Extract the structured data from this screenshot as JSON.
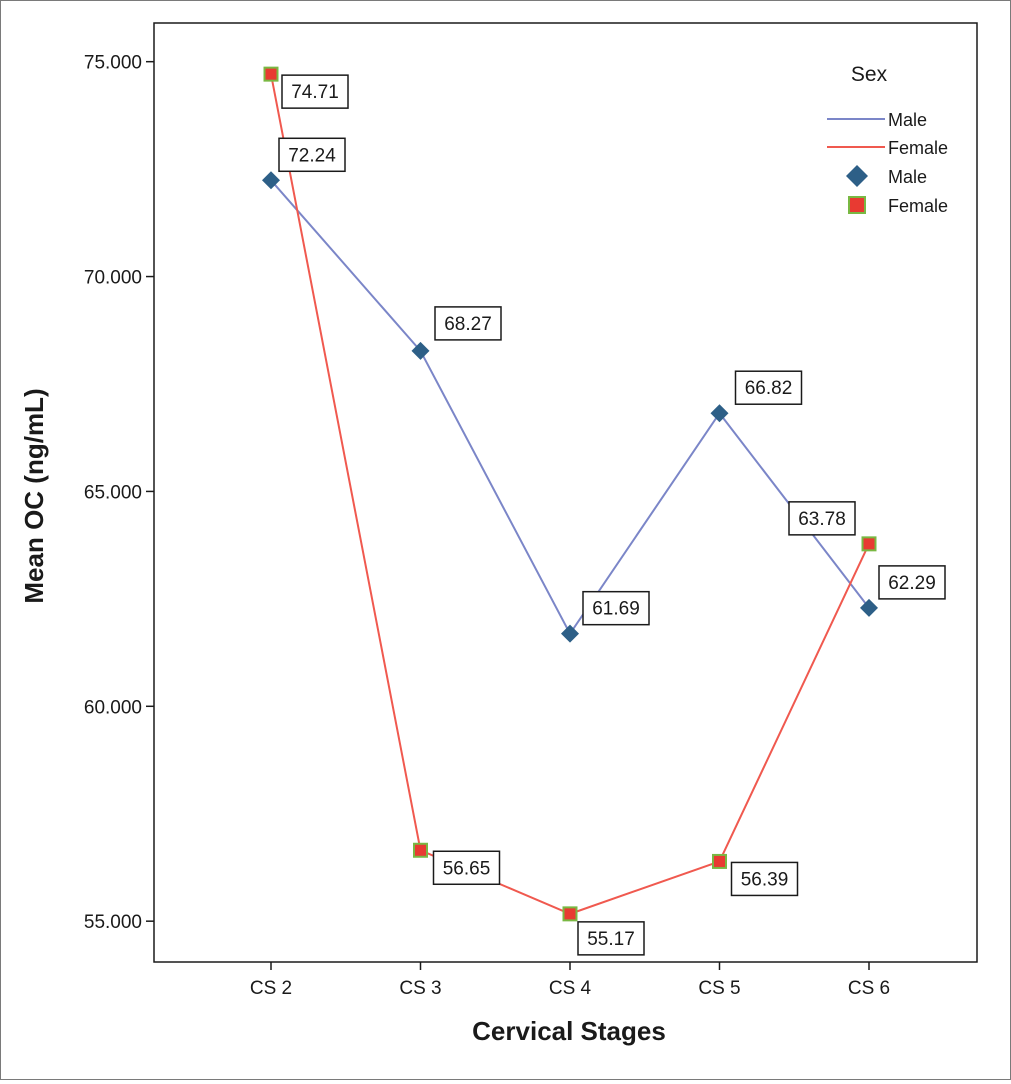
{
  "chart_data": {
    "type": "line",
    "categories": [
      "CS 2",
      "CS 3",
      "CS 4",
      "CS 5",
      "CS 6"
    ],
    "xlabel": "Cervical Stages",
    "ylabel": "Mean OC (ng/mL)",
    "ylim": [
      54.05,
      75.9
    ],
    "yticks": [
      55,
      60,
      65,
      70,
      75
    ],
    "ytick_labels": [
      "55.000",
      "60.000",
      "65.000",
      "70.000",
      "75.000"
    ],
    "grid": false,
    "legend": {
      "title": "Sex",
      "position": "top-right",
      "entries": [
        {
          "label": "Male",
          "kind": "line",
          "color": "#7b86c8"
        },
        {
          "label": "Female",
          "kind": "line",
          "color": "#f0594f"
        },
        {
          "label": "Male",
          "kind": "marker",
          "marker": "diamond",
          "color": "#2d5f87"
        },
        {
          "label": "Female",
          "kind": "marker",
          "marker": "square",
          "color": "#e83a32",
          "edge": "#79b843"
        }
      ]
    },
    "series": [
      {
        "name": "Male",
        "values": [
          72.24,
          68.27,
          61.69,
          66.82,
          62.29
        ],
        "labels": [
          "72.24",
          "68.27",
          "61.69",
          "66.82",
          "62.29"
        ],
        "line_color": "#7b86c8",
        "marker": "diamond",
        "marker_color": "#2d5f87"
      },
      {
        "name": "Female",
        "values": [
          74.71,
          56.65,
          55.17,
          56.39,
          63.78
        ],
        "labels": [
          "74.71",
          "56.65",
          "55.17",
          "56.39",
          "63.78"
        ],
        "line_color": "#f0594f",
        "marker": "square",
        "marker_color": "#e83a32",
        "marker_edge": "#79b843"
      }
    ]
  }
}
